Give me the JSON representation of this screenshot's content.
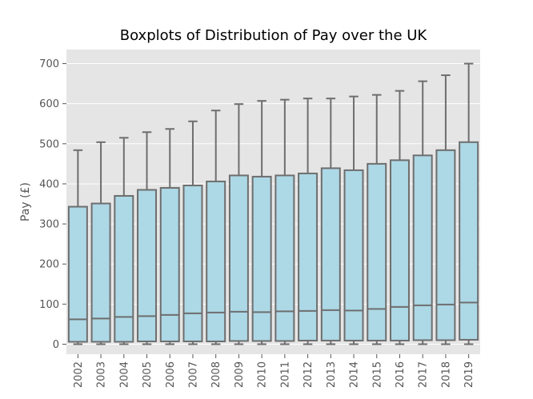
{
  "chart_data": {
    "type": "box",
    "title": "Boxplots of Distribution of Pay over the UK",
    "xlabel": "",
    "ylabel": "Pay (£)",
    "ylim": [
      -25,
      735
    ],
    "yticks": [
      0,
      100,
      200,
      300,
      400,
      500,
      600,
      700
    ],
    "grid": true,
    "colors": {
      "box": "#add8e6",
      "line": "#6e6e6e",
      "background": "#e5e5e5",
      "grid": "#ffffff"
    },
    "categories": [
      "2002",
      "2003",
      "2004",
      "2005",
      "2006",
      "2007",
      "2008",
      "2009",
      "2010",
      "2011",
      "2012",
      "2013",
      "2014",
      "2015",
      "2016",
      "2017",
      "2018",
      "2019"
    ],
    "boxes": [
      {
        "category": "2002",
        "whislo": 0,
        "q1": 6,
        "median": 62,
        "q3": 343,
        "whishi": 484
      },
      {
        "category": "2003",
        "whislo": 0,
        "q1": 6,
        "median": 64,
        "q3": 351,
        "whishi": 504
      },
      {
        "category": "2004",
        "whislo": 0,
        "q1": 6,
        "median": 68,
        "q3": 370,
        "whishi": 515
      },
      {
        "category": "2005",
        "whislo": 0,
        "q1": 7,
        "median": 70,
        "q3": 385,
        "whishi": 529
      },
      {
        "category": "2006",
        "whislo": 0,
        "q1": 7,
        "median": 73,
        "q3": 390,
        "whishi": 537
      },
      {
        "category": "2007",
        "whislo": 0,
        "q1": 7,
        "median": 77,
        "q3": 396,
        "whishi": 556
      },
      {
        "category": "2008",
        "whislo": 0,
        "q1": 7,
        "median": 79,
        "q3": 406,
        "whishi": 583
      },
      {
        "category": "2009",
        "whislo": 0,
        "q1": 8,
        "median": 81,
        "q3": 421,
        "whishi": 599
      },
      {
        "category": "2010",
        "whislo": 0,
        "q1": 8,
        "median": 80,
        "q3": 418,
        "whishi": 607
      },
      {
        "category": "2011",
        "whislo": 0,
        "q1": 8,
        "median": 82,
        "q3": 421,
        "whishi": 610
      },
      {
        "category": "2012",
        "whislo": 0,
        "q1": 9,
        "median": 83,
        "q3": 426,
        "whishi": 613
      },
      {
        "category": "2013",
        "whislo": 0,
        "q1": 9,
        "median": 85,
        "q3": 439,
        "whishi": 613
      },
      {
        "category": "2014",
        "whislo": 0,
        "q1": 9,
        "median": 84,
        "q3": 434,
        "whishi": 618
      },
      {
        "category": "2015",
        "whislo": 0,
        "q1": 9,
        "median": 88,
        "q3": 450,
        "whishi": 622
      },
      {
        "category": "2016",
        "whislo": 0,
        "q1": 9,
        "median": 93,
        "q3": 459,
        "whishi": 632
      },
      {
        "category": "2017",
        "whislo": 0,
        "q1": 10,
        "median": 97,
        "q3": 471,
        "whishi": 656
      },
      {
        "category": "2018",
        "whislo": 0,
        "q1": 10,
        "median": 99,
        "q3": 484,
        "whishi": 671
      },
      {
        "category": "2019",
        "whislo": 0,
        "q1": 11,
        "median": 104,
        "q3": 504,
        "whishi": 700
      }
    ]
  }
}
